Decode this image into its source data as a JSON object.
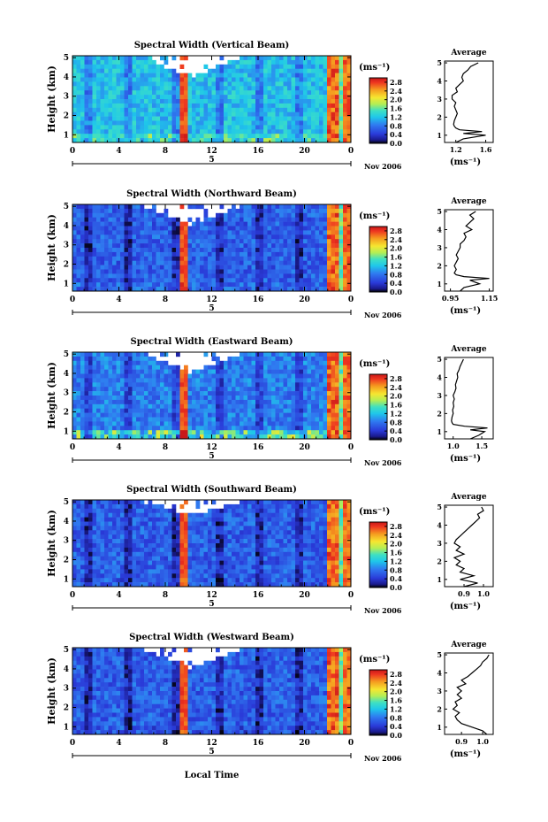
{
  "x_axis_label": "Local Time",
  "date_label": "Nov 2006",
  "day_label": "5",
  "colorbar_unit": "(ms⁻¹)",
  "average_title": "Average",
  "average_xlabel": "(ms⁻¹)",
  "chart_data": [
    {
      "type": "heatmap",
      "title": "Spectral Width (Vertical Beam)",
      "xlabel": "",
      "ylabel": "Height (km)",
      "x_ticks": [
        "0",
        "4",
        "8",
        "12",
        "16",
        "20",
        "0"
      ],
      "xlim": [
        0,
        24
      ],
      "y_ticks": [
        1,
        2,
        3,
        4,
        5
      ],
      "ylim": [
        0.6,
        5.1
      ],
      "colorbar_ticks": [
        "0.0",
        "0.4",
        "0.8",
        "1.2",
        "1.6",
        "2.0",
        "2.4",
        "2.8"
      ],
      "colorbar_range": [
        0,
        3.0
      ],
      "average_profile": {
        "xlim": [
          1.05,
          1.7
        ],
        "x_ticks": [
          1.2,
          1.6
        ],
        "x_tick_labels": [
          "1.2",
          "1.6"
        ],
        "height": [
          0.6,
          0.8,
          1.0,
          1.1,
          1.2,
          1.3,
          1.4,
          1.5,
          1.6,
          1.8,
          2.0,
          2.2,
          2.4,
          2.6,
          2.8,
          3.0,
          3.2,
          3.4,
          3.6,
          3.8,
          4.0,
          4.2,
          4.4,
          4.6,
          4.8,
          5.0
        ],
        "width": [
          1.2,
          1.3,
          1.6,
          1.3,
          1.55,
          1.25,
          1.2,
          1.18,
          1.17,
          1.18,
          1.2,
          1.22,
          1.2,
          1.18,
          1.2,
          1.15,
          1.15,
          1.22,
          1.2,
          1.25,
          1.3,
          1.28,
          1.3,
          1.36,
          1.4,
          1.5
        ]
      }
    },
    {
      "type": "heatmap",
      "title": "Spectral Width (Northward Beam)",
      "xlabel": "",
      "ylabel": "Height (km)",
      "x_ticks": [
        "0",
        "4",
        "8",
        "12",
        "16",
        "20",
        "0"
      ],
      "xlim": [
        0,
        24
      ],
      "y_ticks": [
        1,
        2,
        3,
        4,
        5
      ],
      "ylim": [
        0.6,
        5.1
      ],
      "colorbar_ticks": [
        "0.0",
        "0.4",
        "0.8",
        "1.2",
        "1.6",
        "2.0",
        "2.4",
        "2.8"
      ],
      "colorbar_range": [
        0,
        3.0
      ],
      "average_profile": {
        "xlim": [
          0.92,
          1.17
        ],
        "x_ticks": [
          0.95,
          1.15
        ],
        "x_tick_labels": [
          "0.95",
          "1.15"
        ],
        "height": [
          0.6,
          0.8,
          1.0,
          1.2,
          1.3,
          1.4,
          1.5,
          1.6,
          1.8,
          2.0,
          2.2,
          2.4,
          2.6,
          2.8,
          3.0,
          3.2,
          3.4,
          3.6,
          3.8,
          4.0,
          4.2,
          4.4,
          4.6,
          4.8,
          5.0
        ],
        "width": [
          1.0,
          1.02,
          1.1,
          1.05,
          1.15,
          1.02,
          0.98,
          0.97,
          0.98,
          0.97,
          0.98,
          0.99,
          0.98,
          0.99,
          1.0,
          1.0,
          1.02,
          1.03,
          1.02,
          1.06,
          1.03,
          1.05,
          1.07,
          1.05,
          1.08
        ]
      }
    },
    {
      "type": "heatmap",
      "title": "Spectral Width (Eastward Beam)",
      "xlabel": "",
      "ylabel": "Height (km)",
      "x_ticks": [
        "0",
        "4",
        "8",
        "12",
        "16",
        "20",
        "0"
      ],
      "xlim": [
        0,
        24
      ],
      "y_ticks": [
        1,
        2,
        3,
        4,
        5
      ],
      "ylim": [
        0.6,
        5.1
      ],
      "colorbar_ticks": [
        "0.0",
        "0.4",
        "0.8",
        "1.2",
        "1.6",
        "2.0",
        "2.4",
        "2.8"
      ],
      "colorbar_range": [
        0,
        3.0
      ],
      "average_profile": {
        "xlim": [
          0.85,
          1.7
        ],
        "x_ticks": [
          1.0,
          1.5
        ],
        "x_tick_labels": [
          "1.0",
          "1.5"
        ],
        "height": [
          0.6,
          0.8,
          1.0,
          1.1,
          1.2,
          1.3,
          1.4,
          1.5,
          1.6,
          1.8,
          2.0,
          2.2,
          2.4,
          2.6,
          2.8,
          3.0,
          3.2,
          3.4,
          3.6,
          3.8,
          4.0,
          4.2,
          4.4,
          4.6,
          4.8,
          5.0
        ],
        "width": [
          1.3,
          1.45,
          1.55,
          1.3,
          1.6,
          1.2,
          1.0,
          0.98,
          0.97,
          0.98,
          1.0,
          0.99,
          1.01,
          1.0,
          1.02,
          1.0,
          1.03,
          1.05,
          1.04,
          1.06,
          1.08,
          1.07,
          1.1,
          1.12,
          1.15,
          1.18
        ]
      }
    },
    {
      "type": "heatmap",
      "title": "Spectral Width (Southward Beam)",
      "xlabel": "",
      "ylabel": "Height (km)",
      "x_ticks": [
        "0",
        "4",
        "8",
        "12",
        "16",
        "20",
        "0"
      ],
      "xlim": [
        0,
        24
      ],
      "y_ticks": [
        1,
        2,
        3,
        4,
        5
      ],
      "ylim": [
        0.6,
        5.1
      ],
      "colorbar_ticks": [
        "0.0",
        "0.4",
        "0.8",
        "1.2",
        "1.6",
        "2.0",
        "2.4",
        "2.8"
      ],
      "colorbar_range": [
        0,
        3.0
      ],
      "average_profile": {
        "xlim": [
          0.8,
          1.05
        ],
        "x_ticks": [
          0.9,
          1.0
        ],
        "x_tick_labels": [
          "0.9",
          "1.0"
        ],
        "height": [
          0.6,
          0.8,
          1.0,
          1.2,
          1.4,
          1.6,
          1.8,
          2.0,
          2.2,
          2.4,
          2.6,
          2.8,
          3.0,
          3.2,
          3.4,
          3.6,
          3.8,
          4.0,
          4.2,
          4.4,
          4.6,
          4.8,
          5.0
        ],
        "width": [
          0.9,
          0.97,
          0.88,
          0.95,
          0.88,
          0.9,
          0.86,
          0.88,
          0.85,
          0.9,
          0.86,
          0.88,
          0.85,
          0.86,
          0.88,
          0.9,
          0.92,
          0.94,
          0.96,
          0.98,
          0.97,
          1.0,
          0.99
        ]
      }
    },
    {
      "type": "heatmap",
      "title": "Spectral Width (Westward Beam)",
      "xlabel": "",
      "ylabel": "Height (km)",
      "x_ticks": [
        "0",
        "4",
        "8",
        "12",
        "16",
        "20",
        "0"
      ],
      "xlim": [
        0,
        24
      ],
      "y_ticks": [
        1,
        2,
        3,
        4,
        5
      ],
      "ylim": [
        0.6,
        5.1
      ],
      "colorbar_ticks": [
        "0.0",
        "0.4",
        "0.8",
        "1.2",
        "1.6",
        "2.0",
        "2.4",
        "2.8"
      ],
      "colorbar_range": [
        0,
        3.0
      ],
      "average_profile": {
        "xlim": [
          0.82,
          1.05
        ],
        "x_ticks": [
          0.9,
          1.0
        ],
        "x_tick_labels": [
          "0.9",
          "1.0"
        ],
        "height": [
          0.6,
          0.8,
          1.0,
          1.2,
          1.4,
          1.6,
          1.8,
          2.0,
          2.2,
          2.4,
          2.6,
          2.8,
          3.0,
          3.2,
          3.4,
          3.6,
          3.8,
          4.0,
          4.2,
          4.4,
          4.6,
          4.8,
          5.0
        ],
        "width": [
          1.02,
          1.0,
          0.95,
          0.9,
          0.88,
          0.87,
          0.89,
          0.86,
          0.88,
          0.87,
          0.9,
          0.88,
          0.9,
          0.88,
          0.92,
          0.9,
          0.93,
          0.95,
          0.97,
          0.99,
          1.0,
          1.02,
          1.03
        ]
      }
    }
  ]
}
